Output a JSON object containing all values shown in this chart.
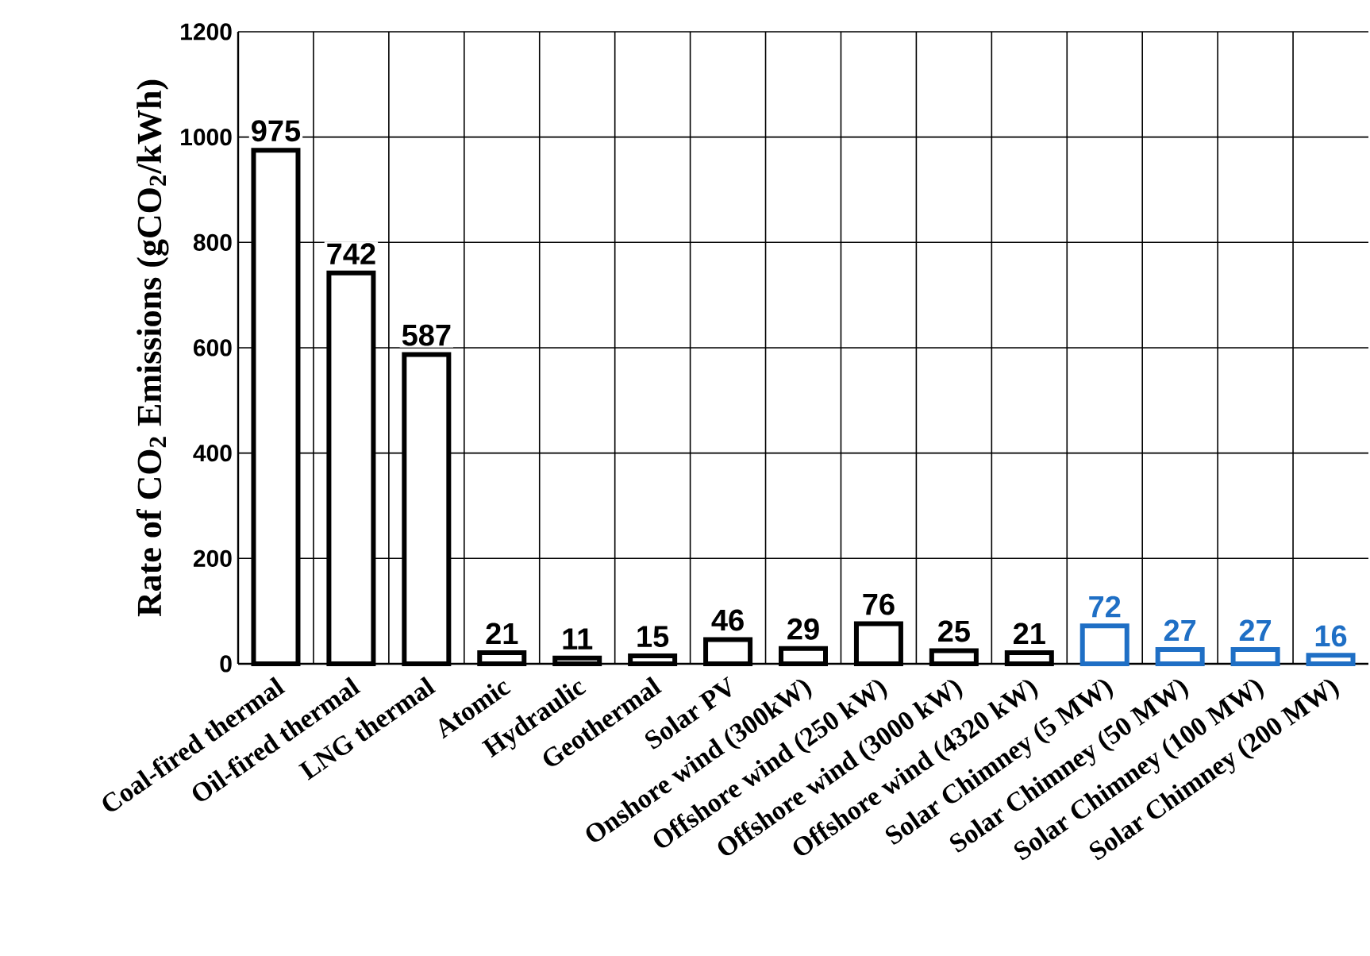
{
  "chart_data": {
    "type": "bar",
    "ylabel": "Rate of CO$_{2}$ Emissions (gCO$_{2}$/kWh)",
    "categories": [
      "Coal-fired thermal",
      "Oil-fired thermal",
      "LNG thermal",
      "Atomic",
      "Hydraulic",
      "Geothermal",
      "Solar PV",
      "Onshore wind (300kW)",
      "Offshore wind (250 kW)",
      "Offshore wind (3000 kW)",
      "Offshore wind (4320 kW)",
      "Solar Chimney (5 MW)",
      "Solar Chimney (50 MW)",
      "Solar Chimney (100 MW)",
      "Solar Chimney (200 MW)"
    ],
    "values": [
      975,
      742,
      587,
      21,
      11,
      15,
      46,
      29,
      76,
      25,
      21,
      72,
      27,
      27,
      16
    ],
    "colors": [
      "#000000",
      "#000000",
      "#000000",
      "#000000",
      "#000000",
      "#000000",
      "#000000",
      "#000000",
      "#000000",
      "#000000",
      "#000000",
      "#1f6fc5",
      "#1f6fc5",
      "#1f6fc5",
      "#1f6fc5"
    ],
    "ylim": [
      0,
      1200
    ],
    "yticks": [
      0,
      200,
      400,
      600,
      800,
      1000,
      1200
    ],
    "grid": true,
    "data_labels": true
  }
}
